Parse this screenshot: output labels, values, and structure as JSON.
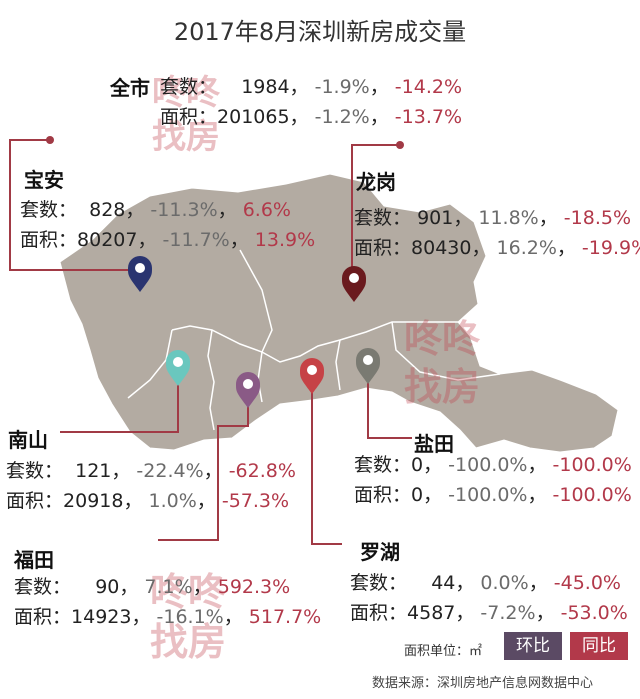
{
  "title": "2017年8月深圳新房成交量",
  "row_label_units": "套数：",
  "row_label_area": "面积：",
  "overall": {
    "name": "全市",
    "units_label": "套数：",
    "units": "1984",
    "units_mom": "-1.9%",
    "units_yoy": "-14.2%",
    "area_label": "面积：",
    "area": "201065",
    "area_mom": "-1.2%",
    "area_yoy": "-13.7%"
  },
  "districts": {
    "baoan": {
      "name": "宝安",
      "units": "828",
      "units_mom": "-11.3%",
      "units_yoy": "6.6%",
      "area": "80207",
      "area_mom": "-11.7%",
      "area_yoy": "13.9%"
    },
    "longgang": {
      "name": "龙岗",
      "units": "901",
      "units_mom": "11.8%",
      "units_yoy": "-18.5%",
      "area": "80430",
      "area_mom": "16.2%",
      "area_yoy": "-19.9%"
    },
    "nanshan": {
      "name": "南山",
      "units": "121",
      "units_mom": "-22.4%",
      "units_yoy": "-62.8%",
      "area": "20918",
      "area_mom": "1.0%",
      "area_yoy": "-57.3%"
    },
    "yantian": {
      "name": "盐田",
      "units": "0",
      "units_mom": "-100.0%",
      "units_yoy": "-100.0%",
      "area": "0",
      "area_mom": "-100.0%",
      "area_yoy": "-100.0%"
    },
    "futian": {
      "name": "福田",
      "units": "90",
      "units_mom": "7.1%",
      "units_yoy": "592.3%",
      "area": "14923",
      "area_mom": "-16.1%",
      "area_yoy": "517.7%"
    },
    "luohu": {
      "name": "罗湖",
      "units": "44",
      "units_mom": "0.0%",
      "units_yoy": "-45.0%",
      "area": "4587",
      "area_mom": "-7.2%",
      "area_yoy": "-53.0%"
    }
  },
  "legend": {
    "area_unit": "面积单位：㎡",
    "mom": "环比",
    "yoy": "同比",
    "mom_color": "#5b4a64",
    "yoy_color": "#b2394a"
  },
  "source": "数据来源：深圳房地产信息网数据中心",
  "watermark": "咚咚找房",
  "colors": {
    "map": "#b3aba2",
    "pin_baoan": "#2a3470",
    "pin_longgang": "#6a1a1e",
    "pin_nanshan": "#6ac7be",
    "pin_futian": "#8a5a86",
    "pin_luohu": "#c64246",
    "pin_yantian": "#7a7a72",
    "leader": "#a13a45"
  }
}
